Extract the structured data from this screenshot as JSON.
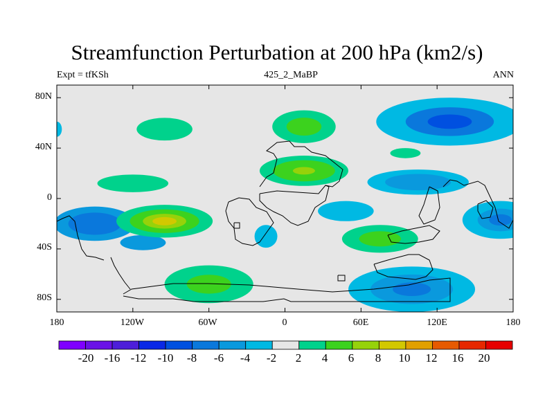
{
  "title": "Streamfunction Perturbation at 200 hPa (km2/s)",
  "subtitle_left": "Expt = tfKSh",
  "subtitle_center": "425_2_MaBP",
  "subtitle_right": "ANN",
  "chart_data": {
    "type": "heatmap",
    "projection": "cylindrical-equidistant",
    "variable": "streamfunction perturbation",
    "units": "km2/s",
    "level": "200 hPa",
    "x_axis": {
      "range": [
        -180,
        180
      ],
      "ticks": [
        -180,
        -120,
        -60,
        0,
        60,
        120,
        180
      ],
      "tick_labels": [
        "180",
        "120W",
        "60W",
        "0",
        "60E",
        "120E",
        "180"
      ]
    },
    "y_axis": {
      "range": [
        -90,
        90
      ],
      "ticks": [
        80,
        40,
        0,
        -40,
        -80
      ],
      "tick_labels": [
        "80N",
        "40N",
        "0",
        "40S",
        "80S"
      ]
    },
    "levels": [
      -20,
      -16,
      -12,
      -10,
      -8,
      -6,
      -4,
      -2,
      2,
      4,
      6,
      8,
      10,
      12,
      16,
      20
    ],
    "colorbar_labels": [
      "-20",
      "-16",
      "-12",
      "-10",
      "-8",
      "-6",
      "-4",
      "-2",
      "2",
      "4",
      "6",
      "8",
      "10",
      "12",
      "16",
      "20"
    ],
    "colors": [
      "#7f00ff",
      "#6a12e6",
      "#4d1ed9",
      "#0a28e6",
      "#0050e0",
      "#0a78dc",
      "#0a99dd",
      "#00b9e3",
      "#e6e6e6",
      "#00d28c",
      "#3cd21e",
      "#96d20a",
      "#d2c800",
      "#e1a000",
      "#e65a00",
      "#e62800",
      "#e60000"
    ],
    "features": [
      {
        "center": [
          -150,
          -20
        ],
        "sign": "negative",
        "max_magnitude": 8
      },
      {
        "center": [
          -95,
          -18
        ],
        "sign": "positive",
        "max_magnitude": 8
      },
      {
        "center": [
          -60,
          -68
        ],
        "sign": "positive",
        "max_magnitude": 6
      },
      {
        "center": [
          15,
          57
        ],
        "sign": "positive",
        "max_magnitude": 6
      },
      {
        "center": [
          20,
          21
        ],
        "sign": "positive",
        "max_magnitude": 8
      },
      {
        "center": [
          75,
          -32
        ],
        "sign": "positive",
        "max_magnitude": 6
      },
      {
        "center": [
          130,
          61
        ],
        "sign": "negative",
        "max_magnitude": 6
      },
      {
        "center": [
          105,
          13
        ],
        "sign": "negative",
        "max_magnitude": 6
      },
      {
        "center": [
          100,
          -72
        ],
        "sign": "negative",
        "max_magnitude": 6
      },
      {
        "center": [
          170,
          -17
        ],
        "sign": "negative",
        "max_magnitude": 6
      }
    ]
  }
}
